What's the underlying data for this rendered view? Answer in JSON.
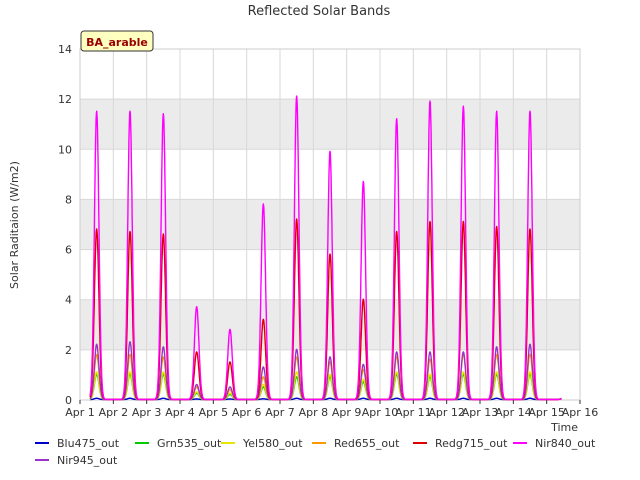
{
  "chart_data": {
    "type": "line",
    "title": "Reflected Solar Bands",
    "ylabel": "Solar Raditaion (W/m2)",
    "xlabel": "Time",
    "site_badge": "BA_arable",
    "ylim": [
      0,
      14
    ],
    "xlim": [
      1,
      16
    ],
    "y_ticks": [
      0,
      2,
      4,
      6,
      8,
      10,
      12,
      14
    ],
    "x_ticks": [
      {
        "day": 1,
        "label": "Apr 1"
      },
      {
        "day": 2,
        "label": "Apr 2"
      },
      {
        "day": 3,
        "label": "Apr 3"
      },
      {
        "day": 4,
        "label": "Apr 4"
      },
      {
        "day": 5,
        "label": "Apr 5"
      },
      {
        "day": 6,
        "label": "Apr 6"
      },
      {
        "day": 7,
        "label": "Apr 7"
      },
      {
        "day": 8,
        "label": "Apr 8"
      },
      {
        "day": 9,
        "label": "Apr 9"
      },
      {
        "day": 10,
        "label": "Apr 10"
      },
      {
        "day": 11,
        "label": "Apr 11"
      },
      {
        "day": 12,
        "label": "Apr 12"
      },
      {
        "day": 13,
        "label": "Apr 13"
      },
      {
        "day": 14,
        "label": "Apr 14"
      },
      {
        "day": 15,
        "label": "Apr 15"
      },
      {
        "day": 16,
        "label": "Apr 16"
      }
    ],
    "grid": true,
    "legend_position": "bottom",
    "day_center": 2.8,
    "day_width": 0.16,
    "days": [
      1,
      2,
      3,
      4,
      5,
      6,
      7,
      8,
      9,
      10,
      11,
      12,
      13,
      14,
      15
    ],
    "series": [
      {
        "name": "Blu475_out",
        "color": "#0000cc",
        "peaks": [
          0.05,
          0.05,
          0.05,
          0.02,
          0.02,
          0.03,
          0.05,
          0.05,
          0.05,
          0.05,
          0.05,
          0.05,
          0.05,
          0.05,
          0.05
        ]
      },
      {
        "name": "Grn535_out",
        "color": "#00cc00",
        "peaks": [
          1.0,
          1.0,
          1.0,
          0.25,
          0.2,
          0.5,
          0.9,
          0.9,
          0.7,
          1.0,
          0.9,
          1.0,
          1.0,
          1.0,
          0.05
        ]
      },
      {
        "name": "Yel580_out",
        "color": "#e6e600",
        "peaks": [
          1.1,
          1.1,
          1.1,
          0.3,
          0.25,
          0.6,
          1.1,
          1.0,
          0.8,
          1.1,
          1.0,
          1.1,
          1.1,
          1.1,
          0.05
        ]
      },
      {
        "name": "Red655_out",
        "color": "#ff9900",
        "peaks": [
          1.8,
          1.8,
          1.7,
          0.5,
          0.4,
          0.9,
          1.7,
          1.5,
          1.2,
          1.7,
          1.6,
          1.8,
          1.8,
          1.8,
          0.05
        ]
      },
      {
        "name": "Redg715_out",
        "color": "#dd0000",
        "peaks": [
          6.8,
          6.7,
          6.6,
          1.9,
          1.5,
          3.2,
          7.2,
          5.8,
          4.0,
          6.7,
          7.1,
          7.1,
          6.9,
          6.8,
          0.05
        ]
      },
      {
        "name": "Nir840_out",
        "color": "#ff00ff",
        "peaks": [
          11.5,
          11.5,
          11.4,
          3.7,
          2.8,
          7.8,
          12.1,
          9.9,
          8.7,
          11.2,
          11.9,
          11.7,
          11.5,
          11.5,
          0.05
        ]
      },
      {
        "name": "Nir945_out",
        "color": "#9933cc",
        "peaks": [
          2.2,
          2.3,
          2.1,
          0.6,
          0.5,
          1.3,
          2.0,
          1.7,
          1.4,
          1.9,
          1.9,
          1.9,
          2.1,
          2.2,
          0.05
        ]
      }
    ]
  },
  "colors": {
    "plot_band": "#ebebeb",
    "badge_fill": "#ffffc0",
    "badge_text": "#990000"
  }
}
